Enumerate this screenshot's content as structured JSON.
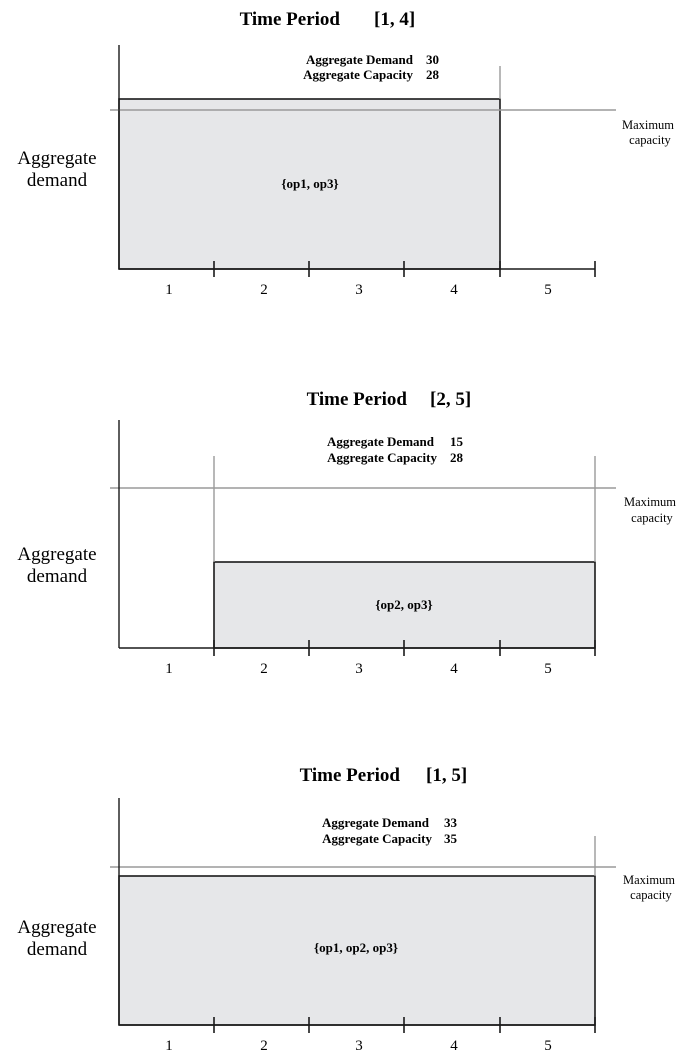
{
  "panels": [
    {
      "title_label": "Time Period",
      "range": "[1, 4]",
      "demand_label": "Aggregate Demand",
      "demand_value": "30",
      "capacity_label": "Aggregate Capacity",
      "capacity_value": "28",
      "ops": "{op1, op3}",
      "y_label_line1": "Aggregate",
      "y_label_line2": "demand",
      "max_line1": "Maximum",
      "max_line2": "capacity",
      "ticks": [
        "1",
        "2",
        "3",
        "4",
        "5"
      ],
      "start_period": 1,
      "end_period": 4
    },
    {
      "title_label": "Time Period",
      "range": "[2, 5]",
      "demand_label": "Aggregate Demand",
      "demand_value": "15",
      "capacity_label": "Aggregate Capacity",
      "capacity_value": "28",
      "ops": "{op2, op3}",
      "y_label_line1": "Aggregate",
      "y_label_line2": "demand",
      "max_line1": "Maximum",
      "max_line2": "capacity",
      "ticks": [
        "1",
        "2",
        "3",
        "4",
        "5"
      ],
      "start_period": 2,
      "end_period": 5
    },
    {
      "title_label": "Time Period",
      "range": "[1, 5]",
      "demand_label": "Aggregate Demand",
      "demand_value": "33",
      "capacity_label": "Aggregate Capacity",
      "capacity_value": "35",
      "ops": "{op1, op2, op3}",
      "y_label_line1": "Aggregate",
      "y_label_line2": "demand",
      "max_line1": "Maximum",
      "max_line2": "capacity",
      "ticks": [
        "1",
        "2",
        "3",
        "4",
        "5"
      ],
      "start_period": 1,
      "end_period": 5
    }
  ],
  "colors": {
    "fill": "#e6e7e9",
    "axis": "#1a1a1a",
    "guide": "#9a9a9a"
  }
}
